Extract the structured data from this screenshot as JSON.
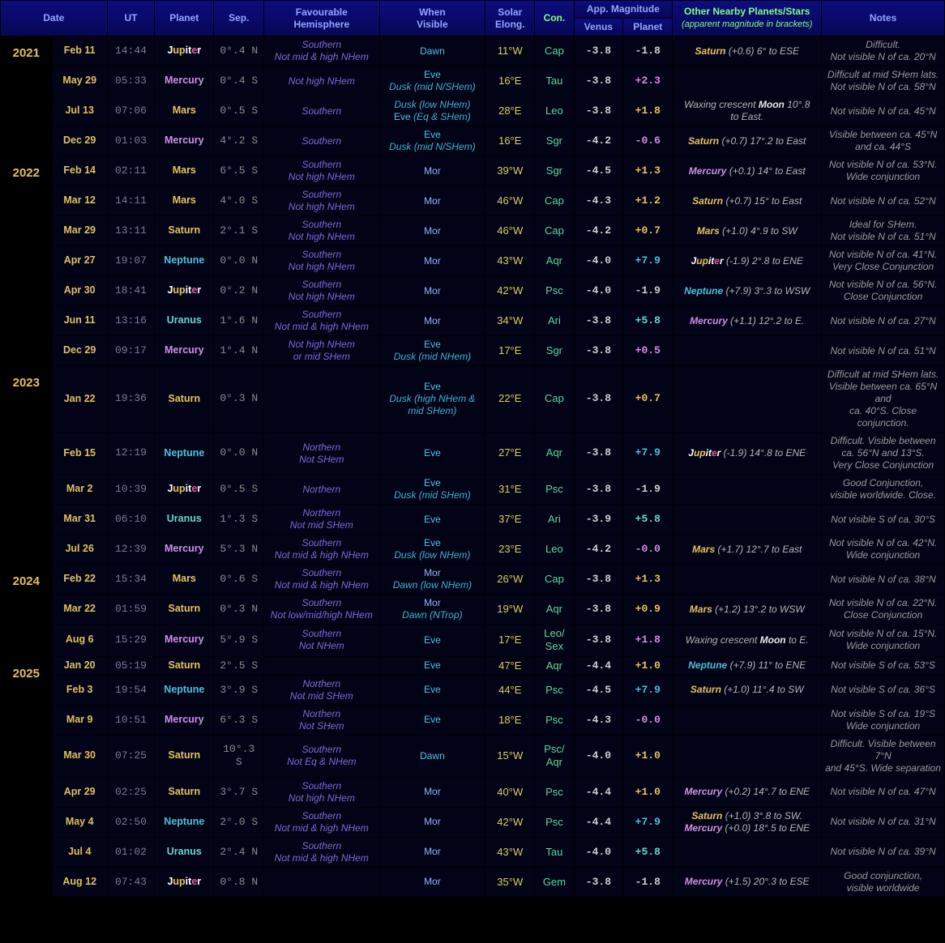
{
  "headers": {
    "date": "Date",
    "ut": "UT",
    "planet": "Planet",
    "sep": "Sep.",
    "hem": "Favourable<br>Hemisphere",
    "vis": "When<br>Visible",
    "elong": "Solar<br>Elong.",
    "con": "Con.",
    "appmag": "App. Magnitude",
    "venus": "Venus",
    "planet_sub": "Planet",
    "nearby": "Other Nearby Planets/Stars<br><span style='font-weight:normal;font-style:italic;font-size:11px'>(apparent magnitude in brackets)</span>",
    "notes": "Notes"
  },
  "planet_colors": {
    "Mercury": "p-mercury",
    "Venus": "p-venus",
    "Mars": "p-mars",
    "Jupiter": "p-jupiter",
    "Saturn": "p-saturn",
    "Uranus": "p-uranus",
    "Neptune": "p-neptune",
    "Moon": "p-moon"
  },
  "jupiter_markup": "<span style='color:#fff'>J</span><span style='color:#e8c45d'>up</span><span style='color:#fff'>it</span><span style='color:#e05fa0'>e</span><span style='color:#fff'>r</span>",
  "rows": [
    {
      "year": "2021",
      "date": "Feb 11",
      "ut": "14:44",
      "planet": "Jupiter",
      "sep": "0°.4 N",
      "hem": "Southern<br><i>Not mid & high NHem</i>",
      "vis": "<span class='vis-dawn'>Dawn</span>",
      "elong": "11°W",
      "con": "Cap",
      "magV": "-3.8",
      "magP": "-1.8",
      "magPcls": "mag-jupiter",
      "nearby": "<span class='p-saturn'>Saturn</span> <i>(+0.6) 6° to ESE</i>",
      "notes": "Difficult.<br>Not visible N of ca. 20°N"
    },
    {
      "date": "May 29",
      "ut": "05:33",
      "planet": "Mercury",
      "sep": "0°.4 S",
      "hem": "<i>Not high NHem</i>",
      "vis": "<span class='vis-eve'>Eve</span><br><span class='vis-sub'>Dusk (mid N/SHem)</span>",
      "elong": "16°E",
      "con": "Tau",
      "magV": "-3.8",
      "magP": "+2.3",
      "magPcls": "mag-mercury",
      "nearby": "",
      "notes": "Difficult at mid SHem lats.<br>Not visible N of ca. 58°N"
    },
    {
      "date": "Jul 13",
      "ut": "07:06",
      "planet": "Mars",
      "sep": "0°.5 S",
      "hem": "Southern",
      "vis": "<span class='vis-sub'>Dusk (low NHem)</span><br><span class='vis-eve'>Eve</span> <span class='vis-sub'>(Eq & SHem)</span>",
      "elong": "28°E",
      "con": "Leo",
      "magV": "-3.8",
      "magP": "+1.8",
      "magPcls": "mag-mars",
      "nearby": "Waxing crescent <span class='p-moon'>Moon</span> 10°.8<br>to East.",
      "notes": "Not visible N of ca. 45°N"
    },
    {
      "date": "Dec 29",
      "ut": "01:03",
      "planet": "Mercury",
      "sep": "4°.2 S",
      "hem": "Southern",
      "vis": "<span class='vis-eve'>Eve</span><br><span class='vis-sub'>Dusk (mid N/SHem)</span>",
      "elong": "16°E",
      "con": "Sgr",
      "magV": "-4.2",
      "magP": "-0.6",
      "magPcls": "mag-mercury",
      "nearby": "<span class='p-saturn'>Saturn</span> <i>(+0.7) 17°.2 to East</i>",
      "notes": "Visible between ca. 45°N<br>and ca. 44°S"
    },
    {
      "year": "2022",
      "date": "Feb 14",
      "ut": "02:11",
      "planet": "Mars",
      "sep": "6°.5 S",
      "hem": "Southern<br><i>Not high NHem</i>",
      "vis": "<span class='vis-mor'>Mor</span>",
      "elong": "39°W",
      "con": "Sgr",
      "magV": "-4.5",
      "magP": "+1.3",
      "magPcls": "mag-mars",
      "nearby": "<span class='p-mercury'>Mercury</span> <i>(+0.1) 14° to East</i>",
      "notes": "Not visible N of ca. 53°N.<br>Wide conjunction"
    },
    {
      "date": "Mar 12",
      "ut": "14:11",
      "planet": "Mars",
      "sep": "4°.0 S",
      "hem": "Southern<br><i>Not high NHem</i>",
      "vis": "<span class='vis-mor'>Mor</span>",
      "elong": "46°W",
      "con": "Cap",
      "magV": "-4.3",
      "magP": "+1.2",
      "magPcls": "mag-mars",
      "nearby": "<span class='p-saturn'>Saturn</span> <i>(+0.7) 15° to East</i>",
      "notes": "Not visible N of ca. 52°N"
    },
    {
      "date": "Mar 29",
      "ut": "13:11",
      "planet": "Saturn",
      "sep": "2°.1 S",
      "hem": "Southern<br><i>Not high NHem</i>",
      "vis": "<span class='vis-mor'>Mor</span>",
      "elong": "46°W",
      "con": "Cap",
      "magV": "-4.2",
      "magP": "+0.7",
      "magPcls": "mag-saturn",
      "nearby": "<span class='p-mars'>Mars</span> <i>(+1.0) 4°.9 to SW</i>",
      "notes": "Ideal for SHem.<br>Not visible N of ca. 51°N"
    },
    {
      "date": "Apr 27",
      "ut": "19:07",
      "planet": "Neptune",
      "sep": "0°.0 N",
      "hem": "Southern<br><i>Not high NHem</i>",
      "vis": "<span class='vis-mor'>Mor</span>",
      "elong": "43°W",
      "con": "Aqr",
      "magV": "-4.0",
      "magP": "+7.9",
      "magPcls": "mag-neptune",
      "nearby": "<span class='p-jupiter'>__JUPITER__</span> <i>(-1.9) 2°.8 to ENE</i>",
      "notes": "Not visible N of ca. 41°N.<br>Very Close Conjunction"
    },
    {
      "date": "Apr 30",
      "ut": "18:41",
      "planet": "Jupiter",
      "sep": "0°.2 N",
      "hem": "Southern<br><i>Not high NHem</i>",
      "vis": "<span class='vis-mor'>Mor</span>",
      "elong": "42°W",
      "con": "Psc",
      "magV": "-4.0",
      "magP": "-1.9",
      "magPcls": "mag-jupiter",
      "nearby": "<span class='p-neptune'>Neptune</span> <i>(+7.9) 3°.3 to WSW</i>",
      "notes": "Not visible N of ca. 56°N.<br>Close Conjunction"
    },
    {
      "date": "Jun 11",
      "ut": "13:16",
      "planet": "Uranus",
      "sep": "1°.6 N",
      "hem": "Southern<br><i>Not mid & high NHem</i>",
      "vis": "<span class='vis-mor'>Mor</span>",
      "elong": "34°W",
      "con": "Ari",
      "magV": "-3.8",
      "magP": "+5.8",
      "magPcls": "mag-uranus",
      "nearby": "<span class='p-mercury'>Mercury</span> <i>(+1.1) 12°.2 to E.</i>",
      "notes": "Not visible N of ca. 27°N"
    },
    {
      "date": "Dec 29",
      "ut": "09:17",
      "planet": "Mercury",
      "sep": "1°.4 N",
      "hem": "<i>Not high NHem<br>or mid SHem</i>",
      "vis": "<span class='vis-eve'>Eve</span><br><span class='vis-sub'>Dusk (mid NHem)</span>",
      "elong": "17°E",
      "con": "Sgr",
      "magV": "-3.8",
      "magP": "+0.5",
      "magPcls": "mag-mercury",
      "nearby": "",
      "notes": "Not visible N of ca. 51°N"
    },
    {
      "year": "2023",
      "date": "Jan 22",
      "ut": "19:36",
      "planet": "Saturn",
      "sep": "0°.3 N",
      "hem": "",
      "vis": "<span class='vis-eve'>Eve</span><br><span class='vis-sub'>Dusk (high NHem &<br>mid SHem)</span>",
      "elong": "22°E",
      "con": "Cap",
      "magV": "-3.8",
      "magP": "+0.7",
      "magPcls": "mag-saturn",
      "nearby": "",
      "notes": "Difficult at mid SHem lats.<br>Visible between ca. 65°N and<br>ca. 40°S. Close conjunction."
    },
    {
      "date": "Feb 15",
      "ut": "12:19",
      "planet": "Neptune",
      "sep": "0°.0 N",
      "hem": "Northern<br><i>Not SHem</i>",
      "vis": "<span class='vis-eve'>Eve</span>",
      "elong": "27°E",
      "con": "Aqr",
      "magV": "-3.8",
      "magP": "+7.9",
      "magPcls": "mag-neptune",
      "nearby": "<span class='p-jupiter'>__JUPITER__</span> <i>(-1.9) 14°.8 to ENE</i>",
      "notes": "Difficult. Visible between<br>ca. 56°N and 13°S.<br>Very Close Conjunction"
    },
    {
      "date": "Mar 2",
      "ut": "10:39",
      "planet": "Jupiter",
      "sep": "0°.5 S",
      "hem": "Northern",
      "vis": "<span class='vis-eve'>Eve</span><br><span class='vis-sub'>Dusk (mid SHem)</span>",
      "elong": "31°E",
      "con": "Psc",
      "magV": "-3.8",
      "magP": "-1.9",
      "magPcls": "mag-jupiter",
      "nearby": "",
      "notes": "Good Conjunction,<br>visible worldwide. Close."
    },
    {
      "date": "Mar 31",
      "ut": "06:10",
      "planet": "Uranus",
      "sep": "1°.3 S",
      "hem": "Northern<br><i>Not mid SHem</i>",
      "vis": "<span class='vis-eve'>Eve</span>",
      "elong": "37°E",
      "con": "Ari",
      "magV": "-3.9",
      "magP": "+5.8",
      "magPcls": "mag-uranus",
      "nearby": "",
      "notes": "Not visible S of ca. 30°S"
    },
    {
      "date": "Jul 26",
      "ut": "12:39",
      "planet": "Mercury",
      "sep": "5°.3 N",
      "hem": "Southern<br><i>Not mid & high NHem</i>",
      "vis": "<span class='vis-eve'>Eve</span><br><span class='vis-sub'>Dusk (low NHem)</span>",
      "elong": "23°E",
      "con": "Leo",
      "magV": "-4.2",
      "magP": "-0.0",
      "magPcls": "mag-mercury",
      "nearby": "<span class='p-mars'>Mars</span> <i>(+1.7) 12°.7 to East</i>",
      "notes": "Not visible N of ca. 42°N.<br>Wide conjunction"
    },
    {
      "year": "2024",
      "date": "Feb 22",
      "ut": "15:34",
      "planet": "Mars",
      "sep": "0°.6 S",
      "hem": "Southern<br><i>Not mid & high NHem</i>",
      "vis": "<span class='vis-mor'>Mor</span><br><span class='vis-sub'>Dawn (low NHem)</span>",
      "elong": "26°W",
      "con": "Cap",
      "magV": "-3.8",
      "magP": "+1.3",
      "magPcls": "mag-mars",
      "nearby": "",
      "notes": "Not visible N of ca. 38°N"
    },
    {
      "date": "Mar 22",
      "ut": "01:59",
      "planet": "Saturn",
      "sep": "0°.3 N",
      "hem": "Southern<br><i>Not low/mid/high NHem</i>",
      "vis": "<span class='vis-mor'>Mor</span><br><span class='vis-sub'>Dawn (NTrop)</span>",
      "elong": "19°W",
      "con": "Aqr",
      "magV": "-3.8",
      "magP": "+0.9",
      "magPcls": "mag-saturn",
      "nearby": "<span class='p-mars'>Mars</span> <i>(+1.2) 13°.2 to WSW</i>",
      "notes": "Not visible N of ca. 22°N.<br>Close Conjunction"
    },
    {
      "date": "Aug 6",
      "ut": "15:29",
      "planet": "Mercury",
      "sep": "5°.9 S",
      "hem": "Southern<br><i>Not NHem</i>",
      "vis": "<span class='vis-eve'>Eve</span>",
      "elong": "17°E",
      "con": "Leo/<br>Sex",
      "magV": "-3.8",
      "magP": "+1.8",
      "magPcls": "mag-mercury",
      "nearby": "Waxing crescent <span class='p-moon'>Moon</span> to E.",
      "notes": "Not visible N of ca. 15°N.<br>Wide conjunction"
    },
    {
      "year": "2025",
      "date": "Jan 20",
      "ut": "05:19",
      "planet": "Saturn",
      "sep": "2°.5 S",
      "hem": "",
      "vis": "<span class='vis-eve'>Eve</span>",
      "elong": "47°E",
      "con": "Aqr",
      "magV": "-4.4",
      "magP": "+1.0",
      "magPcls": "mag-saturn",
      "nearby": "<span class='p-neptune'>Neptune</span> <i>(+7.9) 11° to ENE</i>",
      "notes": "Not visible S of ca. 53°S"
    },
    {
      "date": "Feb 3",
      "ut": "19:54",
      "planet": "Neptune",
      "sep": "3°.9 S",
      "hem": "Northern<br><i>Not mid SHem</i>",
      "vis": "<span class='vis-eve'>Eve</span>",
      "elong": "44°E",
      "con": "Psc",
      "magV": "-4.5",
      "magP": "+7.9",
      "magPcls": "mag-neptune",
      "nearby": "<span class='p-saturn'>Saturn</span> <i>(+1.0) 11°.4 to SW</i>",
      "notes": "Not visible S of ca. 36°S"
    },
    {
      "date": "Mar 9",
      "ut": "10:51",
      "planet": "Mercury",
      "sep": "6°.3 S",
      "hem": "Northern<br><i>Not SHem</i>",
      "vis": "<span class='vis-eve'>Eve</span>",
      "elong": "18°E",
      "con": "Psc",
      "magV": "-4.3",
      "magP": "-0.0",
      "magPcls": "mag-mercury",
      "nearby": "",
      "notes": "Not visible S of ca. 19°S<br>Wide conjunction"
    },
    {
      "date": "Mar 30",
      "ut": "07:25",
      "planet": "Saturn",
      "sep": "10°.3 S",
      "hem": "Southern<br><i>Not Eq & NHem</i>",
      "vis": "<span class='vis-dawn'>Dawn</span>",
      "elong": "15°W",
      "con": "Psc/<br>Aqr",
      "magV": "-4.0",
      "magP": "+1.0",
      "magPcls": "mag-saturn",
      "nearby": "",
      "notes": "Difficult. Visible between 7°N<br>and 45°S. Wide separation"
    },
    {
      "date": "Apr 29",
      "ut": "02:25",
      "planet": "Saturn",
      "sep": "3°.7 S",
      "hem": "Southern<br><i>Not high NHem</i>",
      "vis": "<span class='vis-mor'>Mor</span>",
      "elong": "40°W",
      "con": "Psc",
      "magV": "-4.4",
      "magP": "+1.0",
      "magPcls": "mag-saturn",
      "nearby": "<span class='p-mercury'>Mercury</span> <i>(+0.2) 14°.7 to ENE</i>",
      "notes": "Not visible N of ca. 47°N"
    },
    {
      "date": "May 4",
      "ut": "02:50",
      "planet": "Neptune",
      "sep": "2°.0 S",
      "hem": "Southern<br><i>Not mid & high NHem</i>",
      "vis": "<span class='vis-mor'>Mor</span>",
      "elong": "42°W",
      "con": "Psc",
      "magV": "-4.4",
      "magP": "+7.9",
      "magPcls": "mag-neptune",
      "nearby": "<span class='p-saturn'>Saturn</span> <i>(+1.0) 3°.8 to SW.</i><br><span class='p-mercury'>Mercury</span> <i>(+0.0) 18°.5 to ENE</i>",
      "notes": "Not visible N of ca. 31°N"
    },
    {
      "date": "Jul 4",
      "ut": "01:02",
      "planet": "Uranus",
      "sep": "2°.4 N",
      "hem": "Southern<br><i>Not mid & high NHem</i>",
      "vis": "<span class='vis-mor'>Mor</span>",
      "elong": "43°W",
      "con": "Tau",
      "magV": "-4.0",
      "magP": "+5.8",
      "magPcls": "mag-uranus",
      "nearby": "",
      "notes": "Not visible N of ca. 39°N"
    },
    {
      "date": "Aug 12",
      "ut": "07:43",
      "planet": "Jupiter",
      "sep": "0°.8 N",
      "hem": "",
      "vis": "<span class='vis-mor'>Mor</span>",
      "elong": "35°W",
      "con": "Gem",
      "magV": "-3.8",
      "magP": "-1.8",
      "magPcls": "mag-jupiter",
      "nearby": "<span class='p-mercury'>Mercury</span> <i>(+1.5) 20°.3 to ESE</i>",
      "notes": "Good conjunction,<br>visible worldwide"
    }
  ],
  "colwidths": {
    "year": 60,
    "date": 68,
    "ut": 52,
    "planet": 68,
    "sep": 56,
    "hem": 150,
    "vis": 140,
    "elong": 56,
    "con": 42,
    "magv": 56,
    "magp": 56,
    "nearby": 200,
    "notes": 162
  }
}
